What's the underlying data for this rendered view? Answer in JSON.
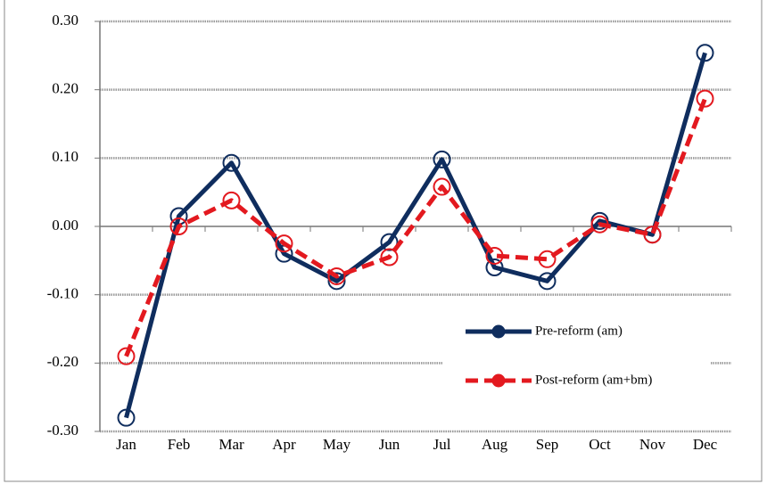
{
  "chart_data": {
    "type": "line",
    "categories": [
      "Jan",
      "Feb",
      "Mar",
      "Apr",
      "May",
      "Jun",
      "Jul",
      "Aug",
      "Sep",
      "Oct",
      "Nov",
      "Dec"
    ],
    "series": [
      {
        "name": "Pre-reform (am)",
        "color": "#0f2d5e",
        "dash": false,
        "values": [
          -0.28,
          0.015,
          0.093,
          -0.04,
          -0.08,
          -0.023,
          0.098,
          -0.06,
          -0.08,
          0.008,
          -0.012,
          0.254
        ]
      },
      {
        "name": "Post-reform (am+bm)",
        "color": "#e3191f",
        "dash": true,
        "values": [
          -0.19,
          0.0,
          0.038,
          -0.025,
          -0.073,
          -0.045,
          0.058,
          -0.043,
          -0.048,
          0.003,
          -0.012,
          0.187
        ]
      }
    ],
    "ylim": [
      -0.3,
      0.3
    ],
    "yticks": [
      {
        "value": 0.3,
        "label": "0.30"
      },
      {
        "value": 0.2,
        "label": "0.20"
      },
      {
        "value": 0.1,
        "label": "0.10"
      },
      {
        "value": 0,
        "label": "0.00"
      },
      {
        "value": -0.1,
        "label": "-0.10"
      },
      {
        "value": -0.2,
        "label": "-0.20"
      },
      {
        "value": -0.3,
        "label": "-0.30"
      }
    ],
    "grid": true
  }
}
